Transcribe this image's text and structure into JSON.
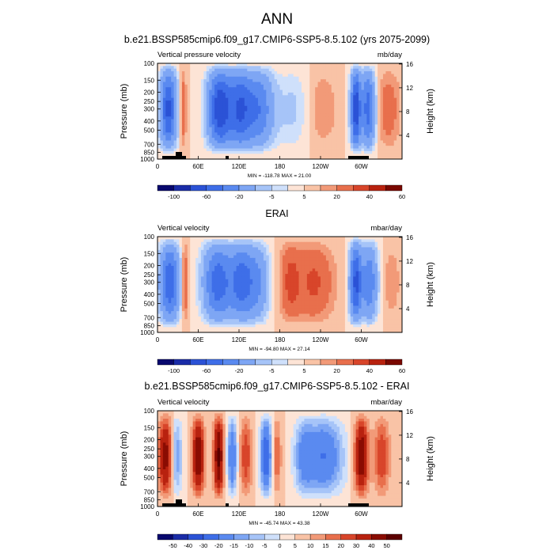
{
  "figure": {
    "title": "ANN"
  },
  "chart_data": [
    {
      "type": "heatmap",
      "title": "b.e21.BSSP585cmip6.f09_g17.CMIP6-SSP5-8.5.102 (yrs 2075-2099)",
      "left_string": "Vertical pressure velocity",
      "right_string": "mb/day",
      "ylabel": "Pressure (mb)",
      "ylabel_right": "Height (km)",
      "y_ticks": [
        "100",
        "150",
        "200",
        "250",
        "300",
        "400",
        "500",
        "700",
        "850",
        "1000"
      ],
      "y_right_ticks": [
        "16",
        "12",
        "8",
        "4"
      ],
      "x_ticks": [
        "0",
        "60E",
        "120E",
        "180",
        "120W",
        "60W"
      ],
      "min_max": "MIN = -118.78   MAX = 21.00",
      "colorbar_labels": [
        "-100",
        "-60",
        "-20",
        "-5",
        "5",
        "20",
        "40",
        "60"
      ],
      "colorbar_colors": [
        "#08086e",
        "#1a2ca8",
        "#2b52d6",
        "#3e6ee8",
        "#5a8af0",
        "#7ea6f4",
        "#a6c4f8",
        "#cfe0fb",
        "#fde4d6",
        "#f9c3a6",
        "#f29a78",
        "#e86f4c",
        "#d8452a",
        "#b8220f",
        "#7a0800"
      ],
      "contour_levels": [
        -120,
        -100,
        -80,
        -60,
        -40,
        -20,
        -10,
        -5,
        0,
        5,
        10,
        20,
        30,
        40,
        60
      ]
    },
    {
      "type": "heatmap",
      "title": "ERAI",
      "left_string": "Vertical velocity",
      "right_string": "mbar/day",
      "ylabel": "Pressure (mb)",
      "ylabel_right": "Height (km)",
      "y_ticks": [
        "100",
        "150",
        "200",
        "250",
        "300",
        "400",
        "500",
        "700",
        "850",
        "1000"
      ],
      "y_right_ticks": [
        "16",
        "12",
        "8",
        "4"
      ],
      "x_ticks": [
        "0",
        "60E",
        "120E",
        "180",
        "120W",
        "60W"
      ],
      "min_max": "MIN = -94.80   MAX = 27.14",
      "colorbar_labels": [
        "-100",
        "-60",
        "-20",
        "-5",
        "5",
        "20",
        "40",
        "60"
      ],
      "colorbar_colors": [
        "#08086e",
        "#1a2ca8",
        "#2b52d6",
        "#3e6ee8",
        "#5a8af0",
        "#7ea6f4",
        "#a6c4f8",
        "#cfe0fb",
        "#fde4d6",
        "#f9c3a6",
        "#f29a78",
        "#e86f4c",
        "#d8452a",
        "#b8220f",
        "#7a0800"
      ],
      "contour_levels": [
        -120,
        -100,
        -80,
        -60,
        -40,
        -20,
        -10,
        -5,
        0,
        5,
        10,
        20,
        30,
        40,
        60
      ]
    },
    {
      "type": "heatmap",
      "title": "b.e21.BSSP585cmip6.f09_g17.CMIP6-SSP5-8.5.102 - ERAI",
      "left_string": "Vertical velocity",
      "right_string": "mbar/day",
      "ylabel": "Pressure (mb)",
      "ylabel_right": "Height (km)",
      "y_ticks": [
        "100",
        "150",
        "200",
        "250",
        "300",
        "400",
        "500",
        "700",
        "850",
        "1000"
      ],
      "y_right_ticks": [
        "16",
        "12",
        "8",
        "4"
      ],
      "x_ticks": [
        "0",
        "60E",
        "120E",
        "180",
        "120W",
        "60W"
      ],
      "min_max": "MIN = -45.74   MAX = 43.38",
      "colorbar_labels": [
        "-50",
        "-40",
        "-30",
        "-20",
        "-15",
        "-10",
        "-5",
        "0",
        "5",
        "10",
        "15",
        "20",
        "30",
        "40",
        "50"
      ],
      "colorbar_colors": [
        "#08086e",
        "#1a2ca8",
        "#2b52d6",
        "#3e6ee8",
        "#5a8af0",
        "#7ea6f4",
        "#a6c4f8",
        "#cfe0fb",
        "#fde4d6",
        "#f9c3a6",
        "#f29a78",
        "#e86f4c",
        "#d8452a",
        "#b8220f",
        "#8a0c02",
        "#5c0000"
      ],
      "contour_levels": [
        -60,
        -50,
        -40,
        -30,
        -20,
        -15,
        -10,
        -5,
        0,
        5,
        10,
        15,
        20,
        30,
        40,
        50
      ]
    }
  ]
}
